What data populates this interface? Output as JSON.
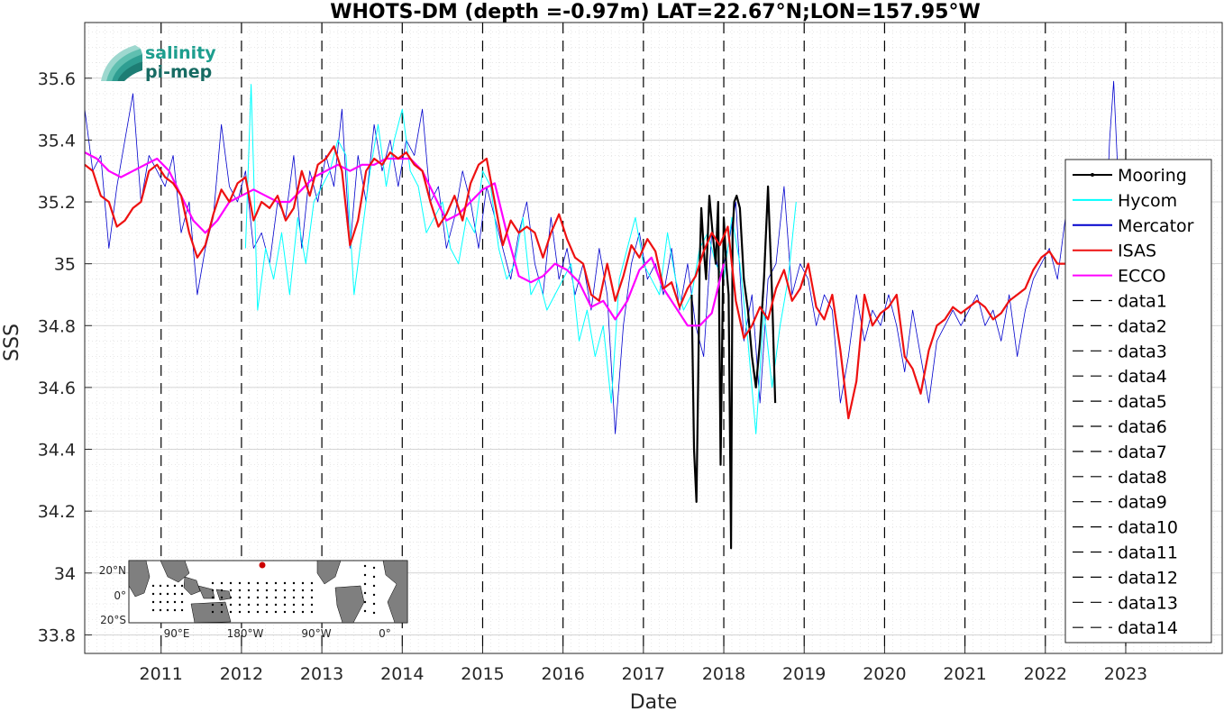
{
  "chart_data": {
    "type": "line",
    "title": "WHOTS-DM (depth =-0.97m) LAT=22.67°N;LON=157.95°W",
    "xlabel": "Date",
    "ylabel": "SSS",
    "xlim": [
      2010.05,
      2024.2
    ],
    "ylim": [
      33.74,
      35.78
    ],
    "x_ticks": [
      "2011",
      "2012",
      "2013",
      "2014",
      "2015",
      "2016",
      "2017",
      "2018",
      "2019",
      "2020",
      "2021",
      "2022",
      "2023"
    ],
    "y_ticks": [
      "33.8",
      "34",
      "34.2",
      "34.4",
      "34.6",
      "34.8",
      "35",
      "35.2",
      "35.4",
      "35.6"
    ],
    "grid": true,
    "legend_position": "east",
    "series": [
      {
        "name": "Mooring",
        "color": "#000000",
        "x": [
          2017.6,
          2017.63,
          2017.66,
          2017.68,
          2017.7,
          2017.72,
          2017.75,
          2017.78,
          2017.82,
          2017.86,
          2017.9,
          2017.93,
          2017.96,
          2018.0,
          2018.03,
          2018.06,
          2018.09,
          2018.11,
          2018.13,
          2018.16,
          2018.2,
          2018.25,
          2018.3,
          2018.35,
          2018.4,
          2018.45,
          2018.5,
          2018.55,
          2018.6,
          2018.64
        ],
        "values": [
          34.9,
          34.4,
          34.23,
          34.6,
          35.0,
          35.18,
          35.05,
          34.95,
          35.22,
          35.1,
          35.0,
          35.2,
          34.35,
          35.15,
          35.0,
          34.9,
          34.08,
          35.1,
          35.2,
          35.22,
          35.18,
          34.95,
          34.85,
          34.7,
          34.6,
          34.75,
          34.95,
          35.25,
          34.9,
          34.55
        ]
      },
      {
        "name": "Hycom",
        "color": "#00ffff",
        "x": [
          2012.05,
          2012.12,
          2012.2,
          2012.3,
          2012.4,
          2012.5,
          2012.6,
          2012.7,
          2012.8,
          2012.9,
          2013.0,
          2013.1,
          2013.2,
          2013.3,
          2013.4,
          2013.5,
          2013.6,
          2013.7,
          2013.8,
          2013.9,
          2014.0,
          2014.1,
          2014.2,
          2014.3,
          2014.4,
          2014.5,
          2014.6,
          2014.7,
          2014.8,
          2014.9,
          2015.0,
          2015.1,
          2015.2,
          2015.3,
          2015.4,
          2015.5,
          2015.6,
          2015.7,
          2015.8,
          2015.9,
          2016.0,
          2016.1,
          2016.2,
          2016.3,
          2016.4,
          2016.5,
          2016.6,
          2016.7,
          2016.8,
          2016.9,
          2017.0,
          2017.1,
          2017.2,
          2017.3,
          2017.4,
          2017.5,
          2017.6,
          2017.7,
          2017.8,
          2017.9,
          2018.0,
          2018.1,
          2018.2,
          2018.3,
          2018.4,
          2018.5,
          2018.6,
          2018.7,
          2018.8,
          2018.9
        ],
        "values": [
          35.05,
          35.58,
          34.85,
          35.05,
          34.95,
          35.1,
          34.9,
          35.15,
          35.0,
          35.2,
          35.25,
          35.3,
          35.4,
          35.35,
          34.9,
          35.1,
          35.3,
          35.45,
          35.25,
          35.4,
          35.5,
          35.3,
          35.25,
          35.1,
          35.15,
          35.2,
          35.05,
          35.0,
          35.15,
          35.1,
          35.3,
          35.25,
          35.05,
          34.95,
          35.0,
          35.15,
          34.9,
          34.95,
          34.85,
          34.9,
          34.95,
          35.0,
          34.75,
          34.85,
          34.7,
          34.8,
          34.55,
          34.95,
          35.05,
          35.15,
          35.0,
          34.95,
          34.9,
          35.1,
          34.95,
          34.85,
          34.9,
          35.05,
          35.1,
          35.0,
          34.95,
          35.15,
          35.0,
          34.75,
          34.45,
          34.85,
          34.6,
          34.8,
          34.95,
          35.2
        ]
      },
      {
        "name": "Mercator",
        "color": "#0000cd",
        "x": [
          2010.05,
          2010.15,
          2010.25,
          2010.35,
          2010.45,
          2010.55,
          2010.65,
          2010.75,
          2010.85,
          2010.95,
          2011.05,
          2011.15,
          2011.25,
          2011.35,
          2011.45,
          2011.55,
          2011.65,
          2011.75,
          2011.85,
          2011.95,
          2012.05,
          2012.15,
          2012.25,
          2012.35,
          2012.45,
          2012.55,
          2012.65,
          2012.75,
          2012.85,
          2012.95,
          2013.05,
          2013.15,
          2013.25,
          2013.35,
          2013.45,
          2013.55,
          2013.65,
          2013.75,
          2013.85,
          2013.95,
          2014.05,
          2014.15,
          2014.25,
          2014.35,
          2014.45,
          2014.55,
          2014.65,
          2014.75,
          2014.85,
          2014.95,
          2015.05,
          2015.15,
          2015.25,
          2015.35,
          2015.45,
          2015.55,
          2015.65,
          2015.75,
          2015.85,
          2015.95,
          2016.05,
          2016.15,
          2016.25,
          2016.35,
          2016.45,
          2016.55,
          2016.65,
          2016.75,
          2016.85,
          2016.95,
          2017.05,
          2017.15,
          2017.25,
          2017.35,
          2017.45,
          2017.55,
          2017.65,
          2017.75,
          2017.85,
          2017.95,
          2018.05,
          2018.15,
          2018.25,
          2018.35,
          2018.45,
          2018.55,
          2018.65,
          2018.75,
          2018.85,
          2018.95,
          2019.05,
          2019.15,
          2019.25,
          2019.35,
          2019.45,
          2019.55,
          2019.65,
          2019.75,
          2019.85,
          2019.95,
          2020.05,
          2020.15,
          2020.25,
          2020.35,
          2020.45,
          2020.55,
          2020.65,
          2020.75,
          2020.85,
          2020.95,
          2021.05,
          2021.15,
          2021.25,
          2021.35,
          2021.45,
          2021.55,
          2021.65,
          2021.75,
          2021.85,
          2021.95,
          2022.05,
          2022.15,
          2022.25,
          2022.35,
          2022.45,
          2022.55,
          2022.65,
          2022.75,
          2022.8,
          2022.85,
          2022.9,
          2022.95
        ],
        "values": [
          35.5,
          35.3,
          35.35,
          35.05,
          35.25,
          35.4,
          35.55,
          35.2,
          35.35,
          35.3,
          35.25,
          35.35,
          35.1,
          35.2,
          34.9,
          35.05,
          35.15,
          35.45,
          35.25,
          35.2,
          35.3,
          35.05,
          35.1,
          35.0,
          35.2,
          35.15,
          35.35,
          35.05,
          35.3,
          35.2,
          35.35,
          35.25,
          35.5,
          35.05,
          35.35,
          35.2,
          35.45,
          35.3,
          35.4,
          35.25,
          35.4,
          35.35,
          35.5,
          35.2,
          35.25,
          35.05,
          35.15,
          35.3,
          35.2,
          35.05,
          35.25,
          35.15,
          35.05,
          34.95,
          35.1,
          35.2,
          35.0,
          34.9,
          35.15,
          34.95,
          35.05,
          34.9,
          35.0,
          34.85,
          35.05,
          34.9,
          34.45,
          34.8,
          35.0,
          35.1,
          34.95,
          35.0,
          34.9,
          35.05,
          34.85,
          35.0,
          34.8,
          34.7,
          35.1,
          34.95,
          35.05,
          35.2,
          34.75,
          34.9,
          34.55,
          34.95,
          35.0,
          35.25,
          34.9,
          35.0,
          34.95,
          34.8,
          34.9,
          34.85,
          34.55,
          34.7,
          34.9,
          34.75,
          34.85,
          34.8,
          34.9,
          34.8,
          34.65,
          34.85,
          34.7,
          34.55,
          34.75,
          34.8,
          34.85,
          34.8,
          34.85,
          34.9,
          34.8,
          34.85,
          34.75,
          34.9,
          34.7,
          34.85,
          34.95,
          35.0,
          35.05,
          34.95,
          35.15,
          35.0,
          34.7,
          35.05,
          35.1,
          35.1,
          35.4,
          35.59,
          35.3,
          35.1
        ]
      },
      {
        "name": "ISAS",
        "color": "#ee1111",
        "x": [
          2010.05,
          2010.15,
          2010.25,
          2010.35,
          2010.45,
          2010.55,
          2010.65,
          2010.75,
          2010.85,
          2010.95,
          2011.05,
          2011.15,
          2011.25,
          2011.35,
          2011.45,
          2011.55,
          2011.65,
          2011.75,
          2011.85,
          2011.95,
          2012.05,
          2012.15,
          2012.25,
          2012.35,
          2012.45,
          2012.55,
          2012.65,
          2012.75,
          2012.85,
          2012.95,
          2013.05,
          2013.15,
          2013.25,
          2013.35,
          2013.45,
          2013.55,
          2013.65,
          2013.75,
          2013.85,
          2013.95,
          2014.05,
          2014.15,
          2014.25,
          2014.35,
          2014.45,
          2014.55,
          2014.65,
          2014.75,
          2014.85,
          2014.95,
          2015.05,
          2015.15,
          2015.25,
          2015.35,
          2015.45,
          2015.55,
          2015.65,
          2015.75,
          2015.85,
          2015.95,
          2016.05,
          2016.15,
          2016.25,
          2016.35,
          2016.45,
          2016.55,
          2016.65,
          2016.75,
          2016.85,
          2016.95,
          2017.05,
          2017.15,
          2017.25,
          2017.35,
          2017.45,
          2017.55,
          2017.65,
          2017.75,
          2017.85,
          2017.95,
          2018.05,
          2018.15,
          2018.25,
          2018.35,
          2018.45,
          2018.55,
          2018.65,
          2018.75,
          2018.85,
          2018.95,
          2019.05,
          2019.15,
          2019.25,
          2019.35,
          2019.45,
          2019.55,
          2019.65,
          2019.75,
          2019.85,
          2019.95,
          2020.05,
          2020.15,
          2020.25,
          2020.35,
          2020.45,
          2020.55,
          2020.65,
          2020.75,
          2020.85,
          2020.95,
          2021.05,
          2021.15,
          2021.25,
          2021.35,
          2021.45,
          2021.55,
          2021.65,
          2021.75,
          2021.85,
          2021.95,
          2022.05,
          2022.15,
          2022.25,
          2022.35,
          2022.45,
          2022.55
        ],
        "values": [
          35.32,
          35.3,
          35.22,
          35.2,
          35.12,
          35.14,
          35.18,
          35.2,
          35.3,
          35.32,
          35.28,
          35.26,
          35.22,
          35.1,
          35.02,
          35.06,
          35.16,
          35.24,
          35.2,
          35.26,
          35.28,
          35.14,
          35.2,
          35.18,
          35.22,
          35.14,
          35.18,
          35.3,
          35.22,
          35.32,
          35.34,
          35.38,
          35.3,
          35.06,
          35.14,
          35.3,
          35.34,
          35.32,
          35.36,
          35.34,
          35.36,
          35.32,
          35.3,
          35.2,
          35.12,
          35.16,
          35.22,
          35.14,
          35.26,
          35.32,
          35.34,
          35.2,
          35.06,
          35.14,
          35.1,
          35.12,
          35.1,
          35.02,
          35.1,
          35.16,
          35.08,
          35.02,
          35.0,
          34.9,
          34.88,
          35.0,
          34.88,
          34.96,
          35.06,
          35.02,
          35.08,
          35.04,
          34.92,
          34.94,
          34.86,
          34.92,
          34.96,
          35.04,
          35.1,
          35.06,
          35.12,
          34.88,
          34.76,
          34.8,
          34.86,
          34.82,
          34.92,
          34.98,
          34.88,
          34.92,
          35.0,
          34.86,
          34.82,
          34.9,
          34.72,
          34.5,
          34.62,
          34.9,
          34.8,
          34.84,
          34.86,
          34.9,
          34.7,
          34.66,
          34.58,
          34.72,
          34.8,
          34.82,
          34.86,
          34.84,
          34.86,
          34.88,
          34.86,
          34.82,
          34.84,
          34.88,
          34.9,
          34.92,
          34.98,
          35.02,
          35.04,
          35.0,
          35.0,
          34.98,
          35.02,
          35.04
        ]
      },
      {
        "name": "ECCO",
        "color": "#ff00ff",
        "x": [
          2010.05,
          2010.2,
          2010.35,
          2010.5,
          2010.65,
          2010.8,
          2010.95,
          2011.1,
          2011.25,
          2011.4,
          2011.55,
          2011.7,
          2011.85,
          2012.0,
          2012.15,
          2012.3,
          2012.45,
          2012.6,
          2012.75,
          2012.9,
          2013.05,
          2013.2,
          2013.35,
          2013.5,
          2013.65,
          2013.8,
          2013.95,
          2014.1,
          2014.25,
          2014.4,
          2014.55,
          2014.7,
          2014.85,
          2015.0,
          2015.15,
          2015.3,
          2015.45,
          2015.6,
          2015.75,
          2015.9,
          2016.05,
          2016.2,
          2016.35,
          2016.5,
          2016.65,
          2016.8,
          2016.95,
          2017.1,
          2017.25,
          2017.4,
          2017.55,
          2017.7,
          2017.85,
          2018.0
        ],
        "values": [
          35.36,
          35.34,
          35.3,
          35.28,
          35.3,
          35.32,
          35.34,
          35.3,
          35.22,
          35.14,
          35.1,
          35.14,
          35.2,
          35.22,
          35.24,
          35.22,
          35.2,
          35.2,
          35.24,
          35.28,
          35.3,
          35.32,
          35.3,
          35.32,
          35.32,
          35.34,
          35.34,
          35.34,
          35.3,
          35.22,
          35.14,
          35.16,
          35.2,
          35.24,
          35.26,
          35.1,
          34.96,
          34.94,
          34.96,
          35.0,
          34.98,
          34.94,
          34.86,
          34.88,
          34.82,
          34.88,
          34.98,
          35.02,
          34.92,
          34.86,
          34.8,
          34.8,
          34.84,
          35.0
        ]
      }
    ],
    "legend_entries": [
      "Mooring",
      "Hycom",
      "Mercator",
      "ISAS",
      "ECCO",
      "data1",
      "data2",
      "data3",
      "data4",
      "data5",
      "data6",
      "data7",
      "data8",
      "data9",
      "data10",
      "data11",
      "data12",
      "data13",
      "data14"
    ],
    "vertical_dashed_lines_x": [
      2011,
      2012,
      2013,
      2014,
      2015,
      2016,
      2017,
      2018,
      2019,
      2020,
      2021,
      2022,
      2023
    ]
  },
  "logo": {
    "line1": "salinity",
    "line2": "pi-mep"
  },
  "inset_map": {
    "lat_labels": [
      "20°N",
      "0°",
      "20°S"
    ],
    "lon_labels": [
      "90°E",
      "180°W",
      "90°W",
      "0°"
    ],
    "land_color": "#7f7f7f",
    "marker_color": "#cc0000"
  }
}
